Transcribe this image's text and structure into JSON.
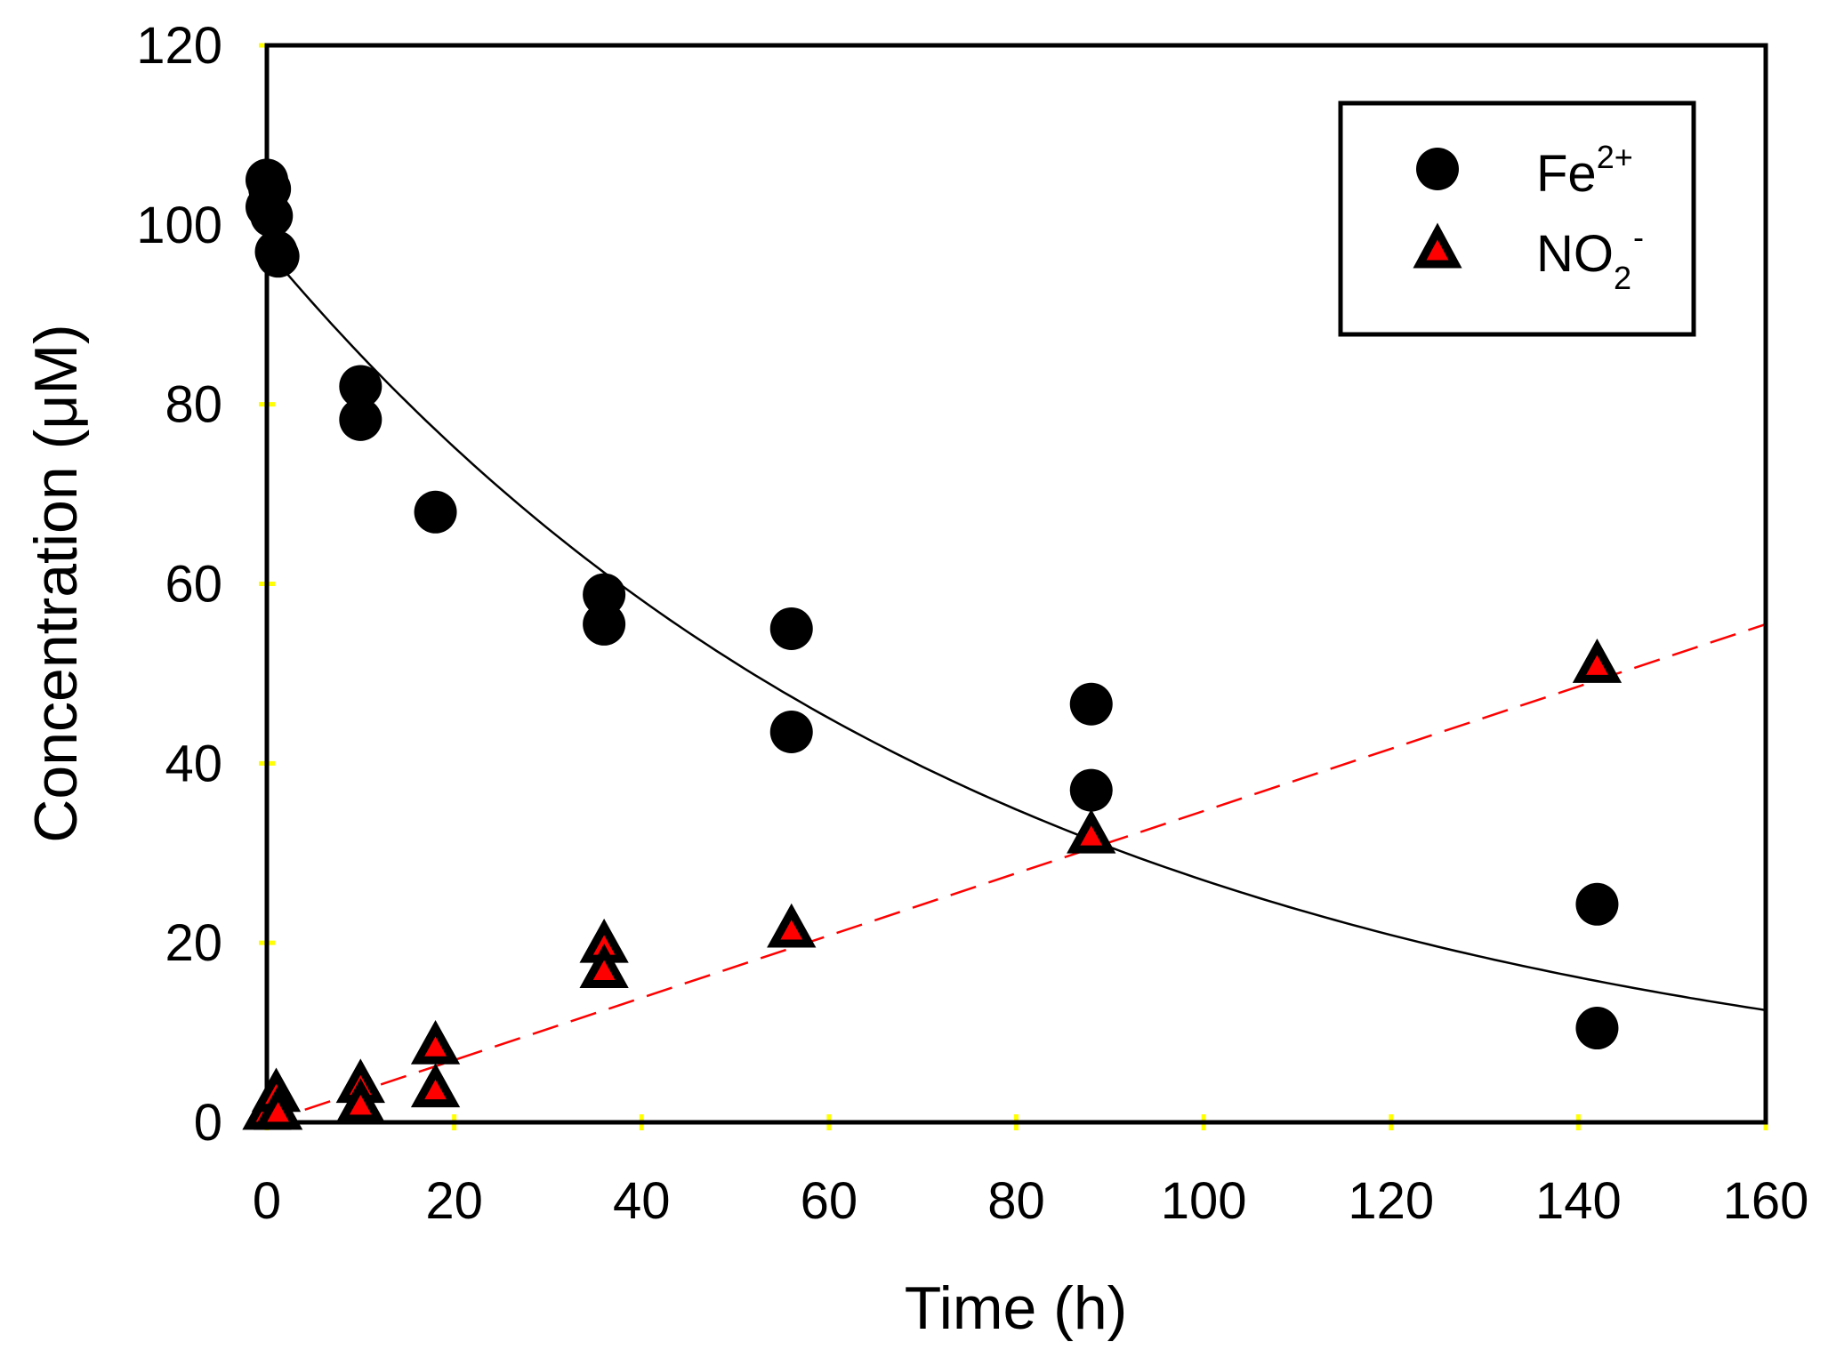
{
  "chart_data": {
    "type": "scatter",
    "xlabel": "Time (h)",
    "ylabel": "Concentration (μM)",
    "xlim": [
      0,
      160
    ],
    "ylim": [
      0,
      120
    ],
    "x_ticks": [
      0,
      20,
      40,
      60,
      80,
      100,
      120,
      140,
      160
    ],
    "y_ticks": [
      0,
      20,
      40,
      60,
      80,
      100,
      120
    ],
    "grid": false,
    "legend_position": "top-right",
    "legend": [
      {
        "base": "Fe",
        "sup": "2+",
        "sub": "",
        "marker": "circle"
      },
      {
        "base": "NO",
        "sub": "2",
        "sup": "-",
        "marker": "triangle"
      }
    ],
    "series": [
      {
        "name": "Fe2+",
        "marker": "circle",
        "marker_color": "#000000",
        "points": [
          [
            0,
            105
          ],
          [
            0.3,
            104
          ],
          [
            0,
            102
          ],
          [
            0.5,
            101
          ],
          [
            1,
            97
          ],
          [
            1.2,
            96.5
          ],
          [
            10,
            82
          ],
          [
            10,
            78.3
          ],
          [
            18,
            68
          ],
          [
            36,
            58.8
          ],
          [
            36,
            55.5
          ],
          [
            56,
            55
          ],
          [
            56,
            43.5
          ],
          [
            88,
            46.6
          ],
          [
            88,
            37
          ],
          [
            142,
            24.3
          ],
          [
            142,
            10.5
          ]
        ]
      },
      {
        "name": "NO2-",
        "marker": "triangle",
        "marker_color": "#ff0000",
        "edge_color": "#000000",
        "points": [
          [
            0,
            1.2
          ],
          [
            1,
            3.2
          ],
          [
            1.2,
            1.2
          ],
          [
            10,
            4.2
          ],
          [
            10,
            2
          ],
          [
            18,
            8.5
          ],
          [
            18,
            3.7
          ],
          [
            36,
            19.8
          ],
          [
            36,
            17
          ],
          [
            56,
            21.5
          ],
          [
            88,
            32
          ],
          [
            142,
            51
          ]
        ]
      }
    ],
    "fits": [
      {
        "name": "Fe2+ exponential fit",
        "style": "solid",
        "color": "#000000",
        "a": 97.2,
        "k": 0.01282
      },
      {
        "name": "NO2- linear fit",
        "style": "dashed",
        "color": "#ff0000",
        "x": [
          0,
          160
        ],
        "y": [
          0,
          55.5
        ]
      }
    ],
    "tick_mark_color": "#ffff00"
  }
}
